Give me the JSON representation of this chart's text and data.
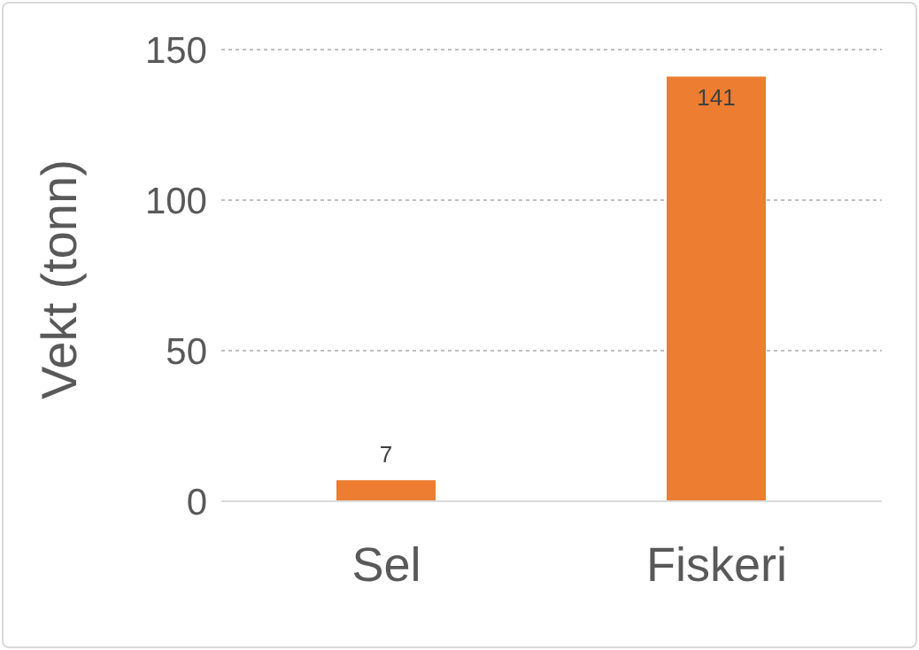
{
  "chart_data": {
    "type": "bar",
    "ylabel": "Vekt (tonn)",
    "categories": [
      "Sel",
      "Fiskeri"
    ],
    "values": [
      7,
      141
    ],
    "color": "#ed7d31",
    "ylim": [
      0,
      150
    ],
    "yticks": [
      0,
      50,
      100,
      150
    ],
    "grid": "y",
    "data_labels": true
  }
}
